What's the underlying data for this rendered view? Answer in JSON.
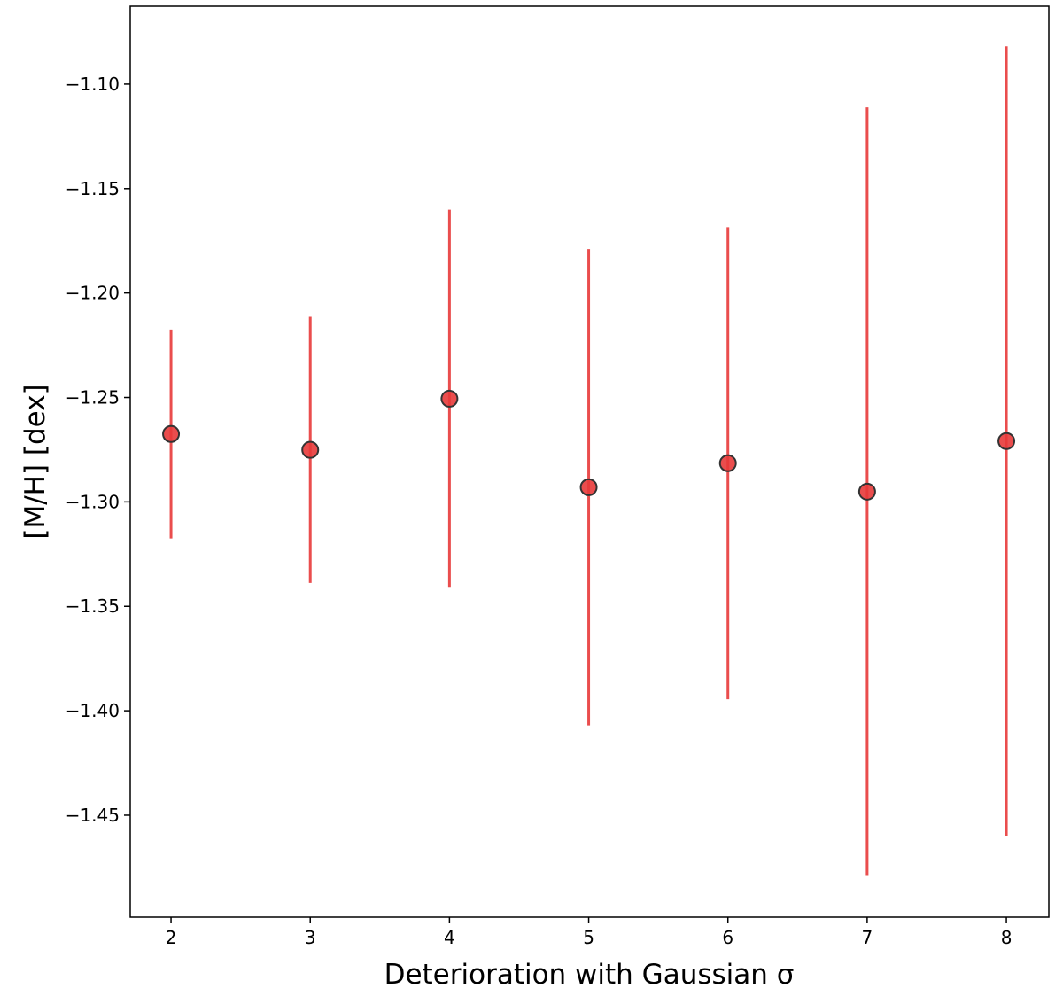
{
  "chart_data": {
    "type": "scatter",
    "x_label": "Deterioration with Gaussian σ",
    "y_label": "[M/H] [dex]",
    "x": [
      2,
      3,
      4,
      5,
      6,
      7,
      8
    ],
    "values": [
      -1.2675,
      -1.2751,
      -1.2506,
      -1.293,
      -1.2815,
      -1.2951,
      -1.2709
    ],
    "errors": [
      0.05,
      0.0637,
      0.0905,
      0.114,
      0.113,
      0.184,
      0.189
    ],
    "color": "#e83a3a",
    "xlim": [
      1.707,
      8.305
    ],
    "ylim": [
      -1.4988,
      -1.0627
    ],
    "xticks": [
      2,
      3,
      4,
      5,
      6,
      7,
      8
    ],
    "yticks": [
      {
        "value": -1.45,
        "label": "−1.45"
      },
      {
        "value": -1.4,
        "label": "−1.40"
      },
      {
        "value": -1.35,
        "label": "−1.35"
      },
      {
        "value": -1.3,
        "label": "−1.30"
      },
      {
        "value": -1.25,
        "label": "−1.25"
      },
      {
        "value": -1.2,
        "label": "−1.20"
      },
      {
        "value": -1.15,
        "label": "−1.15"
      },
      {
        "value": -1.1,
        "label": "−1.10"
      }
    ]
  }
}
